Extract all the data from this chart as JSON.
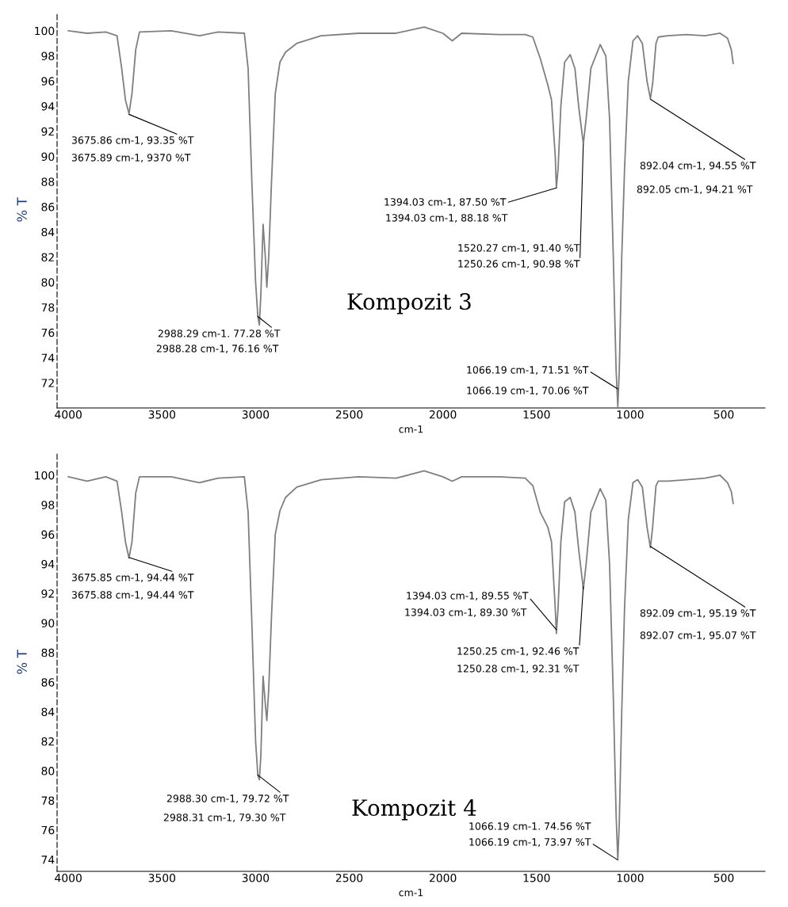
{
  "chart_data": [
    {
      "type": "line",
      "title": "Kompozit 3",
      "xlabel": "cm-1",
      "ylabel": "% T",
      "xlim": [
        4060,
        280
      ],
      "ylim": [
        70,
        101.5
      ],
      "xticks": [
        4000,
        3500,
        3000,
        2500,
        2000,
        1500,
        1000,
        500
      ],
      "yticks": [
        72,
        74,
        76,
        78,
        80,
        82,
        84,
        86,
        88,
        90,
        92,
        94,
        96,
        98,
        100
      ],
      "grid": false,
      "legend": false,
      "marker": "none",
      "line_style": "solid",
      "series": [
        {
          "color": "#7f7f7f",
          "x": [
            4000,
            3900,
            3800,
            3740,
            3715,
            3695,
            3676,
            3660,
            3640,
            3620,
            3450,
            3300,
            3200,
            3060,
            3040,
            3020,
            3000,
            2988,
            2980,
            2972,
            2960,
            2948,
            2940,
            2930,
            2915,
            2895,
            2870,
            2840,
            2780,
            2650,
            2450,
            2250,
            2100,
            2000,
            1950,
            1900,
            1700,
            1560,
            1520,
            1480,
            1440,
            1420,
            1400,
            1394,
            1385,
            1370,
            1350,
            1320,
            1295,
            1275,
            1250,
            1235,
            1210,
            1160,
            1130,
            1110,
            1090,
            1075,
            1066,
            1058,
            1045,
            1030,
            1010,
            985,
            960,
            935,
            910,
            892,
            880,
            862,
            850,
            800,
            700,
            600,
            520,
            480,
            460,
            450
          ],
          "values": [
            100.0,
            99.8,
            99.9,
            99.6,
            97.0,
            94.5,
            93.4,
            95.0,
            98.5,
            99.9,
            100.0,
            99.6,
            99.9,
            99.8,
            97.0,
            88.0,
            80.0,
            77.3,
            76.6,
            79.0,
            84.6,
            82.0,
            79.6,
            82.0,
            88.0,
            95.0,
            97.5,
            98.3,
            99.0,
            99.6,
            99.8,
            99.8,
            100.3,
            99.8,
            99.2,
            99.8,
            99.7,
            99.7,
            99.5,
            97.8,
            95.7,
            94.5,
            90.0,
            87.5,
            89.0,
            94.0,
            97.5,
            98.1,
            97.0,
            94.0,
            91.0,
            93.0,
            97.0,
            98.9,
            98.0,
            93.0,
            82.0,
            73.0,
            70.1,
            73.0,
            82.0,
            89.0,
            96.0,
            99.2,
            99.6,
            99.0,
            96.0,
            94.6,
            95.8,
            99.0,
            99.5,
            99.6,
            99.7,
            99.6,
            99.8,
            99.4,
            98.5,
            97.4
          ]
        }
      ],
      "annotations": [
        {
          "text": "3675.86 cm-1, 93.35 %T",
          "x": 3675.86,
          "y": 93.35
        },
        "3675.89 cm-1, 9370 %T",
        {
          "text": "2988.29 cm-1. 77.28 %T",
          "x": 2988.29,
          "y": 77.28
        },
        "2988.28 cm-1, 76.16 %T",
        {
          "text": "1394.03 cm-1, 87.50 %T",
          "x": 1394.03,
          "y": 87.5
        },
        "1394.03 cm-1, 88.18 %T",
        "1520.27 cm-1, 91.40 %T",
        {
          "text": "1250.26 cm-1, 90.98 %T",
          "x": 1250.26,
          "y": 90.98
        },
        {
          "text": "892.04 cm-1, 94.55 %T",
          "x": 892.04,
          "y": 94.55
        },
        "892.05 cm-1, 94.21 %T",
        {
          "text": "1066.19 cm-1, 71.51 %T",
          "x": 1066.19,
          "y": 71.51
        },
        "1066.19 cm-1, 70.06 %T"
      ]
    },
    {
      "type": "line",
      "title": "Kompozit 4",
      "xlabel": "cm-1",
      "ylabel": "% T",
      "xlim": [
        4060,
        280
      ],
      "ylim": [
        73.2,
        101.5
      ],
      "xticks": [
        4000,
        3500,
        3000,
        2500,
        2000,
        1500,
        1000,
        500
      ],
      "yticks": [
        74,
        76,
        78,
        80,
        82,
        84,
        86,
        88,
        90,
        92,
        94,
        96,
        98,
        100
      ],
      "grid": false,
      "legend": false,
      "marker": "none",
      "line_style": "solid",
      "series": [
        {
          "color": "#7f7f7f",
          "x": [
            4000,
            3900,
            3800,
            3740,
            3715,
            3695,
            3676,
            3660,
            3640,
            3620,
            3450,
            3300,
            3200,
            3060,
            3040,
            3020,
            3000,
            2988,
            2980,
            2972,
            2960,
            2948,
            2940,
            2930,
            2915,
            2895,
            2870,
            2840,
            2780,
            2650,
            2450,
            2250,
            2100,
            2000,
            1950,
            1900,
            1700,
            1560,
            1520,
            1480,
            1440,
            1420,
            1400,
            1394,
            1385,
            1370,
            1350,
            1320,
            1295,
            1275,
            1250,
            1235,
            1210,
            1160,
            1130,
            1110,
            1090,
            1075,
            1066,
            1058,
            1045,
            1030,
            1010,
            985,
            960,
            935,
            910,
            892,
            880,
            862,
            850,
            800,
            700,
            600,
            520,
            480,
            460,
            450
          ],
          "values": [
            99.9,
            99.6,
            99.9,
            99.6,
            97.5,
            95.5,
            94.4,
            95.5,
            98.8,
            99.9,
            99.9,
            99.5,
            99.8,
            99.9,
            97.5,
            90.0,
            82.0,
            79.7,
            79.4,
            81.0,
            86.4,
            84.5,
            83.4,
            85.5,
            90.5,
            96.0,
            97.6,
            98.5,
            99.2,
            99.7,
            99.9,
            99.8,
            100.3,
            99.9,
            99.6,
            99.9,
            99.9,
            99.8,
            99.3,
            97.5,
            96.5,
            95.5,
            91.0,
            89.3,
            91.0,
            95.5,
            98.2,
            98.5,
            97.5,
            95.0,
            92.3,
            94.0,
            97.5,
            99.1,
            98.3,
            94.0,
            85.0,
            77.0,
            74.0,
            76.5,
            84.0,
            91.0,
            97.0,
            99.5,
            99.7,
            99.2,
            96.5,
            95.1,
            96.5,
            99.3,
            99.6,
            99.6,
            99.7,
            99.8,
            100.0,
            99.5,
            98.9,
            98.1
          ]
        }
      ],
      "annotations": [
        {
          "text": "3675.85 cm-1, 94.44 %T",
          "x": 3675.85,
          "y": 94.44
        },
        "3675.88 cm-1, 94.44 %T",
        {
          "text": "2988.30 cm-1, 79.72 %T",
          "x": 2988.3,
          "y": 79.72
        },
        "2988.31 cm-1, 79.30 %T",
        {
          "text": "1394.03 cm-1, 89.55 %T",
          "x": 1394.03,
          "y": 89.55
        },
        "1394.03 cm-1, 89.30 %T",
        {
          "text": "1250.25 cm-1, 92.46 %T",
          "x": 1250.25,
          "y": 92.46
        },
        "1250.28 cm-1, 92.31 %T",
        {
          "text": "892.09 cm-1, 95.19 %T",
          "x": 892.09,
          "y": 95.19
        },
        "892.07 cm-1, 95.07 %T",
        "1066.19 cm-1. 74.56 %T",
        {
          "text": "1066.19 cm-1, 73.97 %T",
          "x": 1066.19,
          "y": 73.97
        }
      ]
    }
  ]
}
